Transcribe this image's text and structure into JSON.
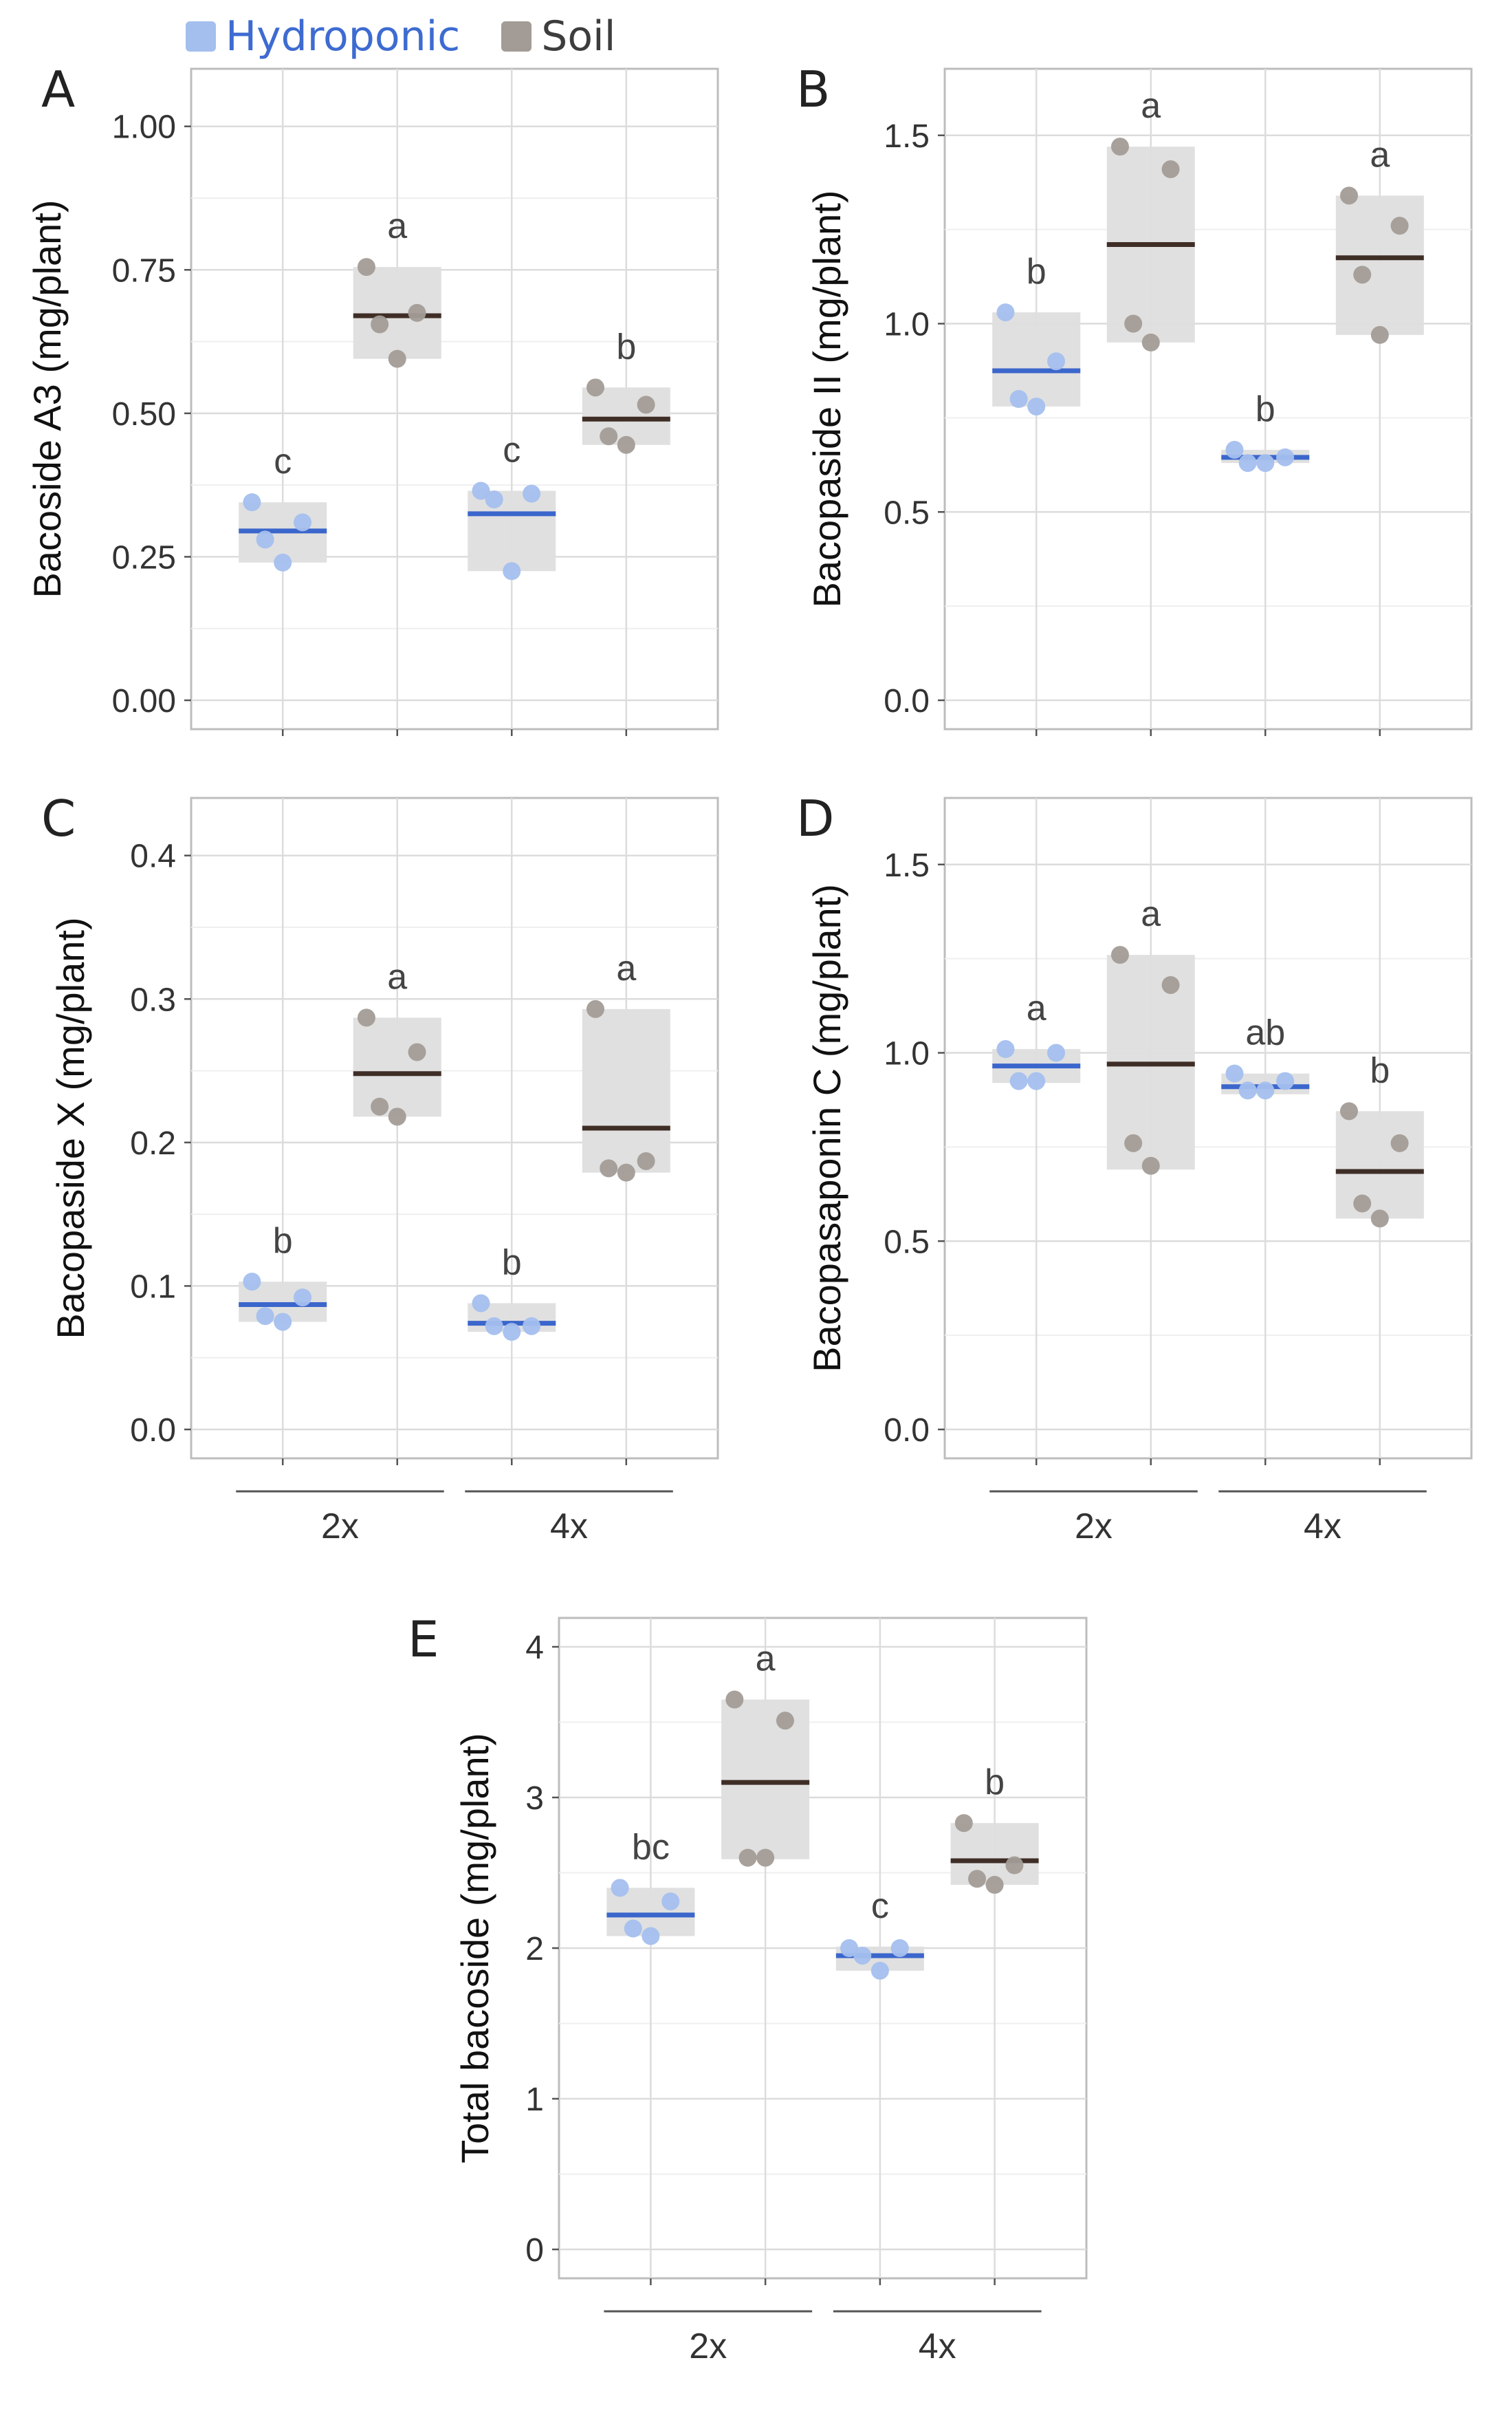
{
  "legend": {
    "items": [
      {
        "label": "Hydroponic",
        "color": "#a4bfee",
        "line_color": "#3b66cc"
      },
      {
        "label": "Soil",
        "color": "#a39c96",
        "line_color": "#3f2e26"
      }
    ]
  },
  "group_labels": [
    "2x",
    "4x"
  ],
  "chart_data": [
    {
      "type": "dot-strip",
      "panel": "A",
      "ylabel": "Bacoside A3 (mg/plant)",
      "ylim": [
        0,
        1.05
      ],
      "yticks": [
        0,
        0.25,
        0.5,
        0.75,
        1.0
      ],
      "ytick_labels": [
        "0.00",
        "0.25",
        "0.50",
        "0.75",
        "1.00"
      ],
      "groups": [
        "2x",
        "4x"
      ],
      "series": [
        {
          "group": "2x",
          "medium": "Hydroponic",
          "points": [
            0.345,
            0.28,
            0.24,
            0.31
          ],
          "mean": 0.295,
          "range": [
            0.24,
            0.345
          ],
          "letter": "c"
        },
        {
          "group": "2x",
          "medium": "Soil",
          "points": [
            0.755,
            0.655,
            0.595,
            0.675
          ],
          "mean": 0.67,
          "range": [
            0.595,
            0.755
          ],
          "letter": "a"
        },
        {
          "group": "4x",
          "medium": "Hydroponic",
          "points": [
            0.365,
            0.35,
            0.225,
            0.36
          ],
          "mean": 0.325,
          "range": [
            0.225,
            0.365
          ],
          "letter": "c"
        },
        {
          "group": "4x",
          "medium": "Soil",
          "points": [
            0.545,
            0.46,
            0.445,
            0.515
          ],
          "mean": 0.49,
          "range": [
            0.445,
            0.545
          ],
          "letter": "b"
        }
      ]
    },
    {
      "type": "dot-strip",
      "panel": "B",
      "ylabel": "Bacopaside II (mg/plant)",
      "ylim": [
        0,
        1.6
      ],
      "yticks": [
        0,
        0.5,
        1.0,
        1.5
      ],
      "ytick_labels": [
        "0.0",
        "0.5",
        "1.0",
        "1.5"
      ],
      "groups": [
        "2x",
        "4x"
      ],
      "series": [
        {
          "group": "2x",
          "medium": "Hydroponic",
          "points": [
            1.03,
            0.8,
            0.78,
            0.9
          ],
          "mean": 0.875,
          "range": [
            0.78,
            1.03
          ],
          "letter": "b"
        },
        {
          "group": "2x",
          "medium": "Soil",
          "points": [
            1.47,
            1.0,
            0.95,
            1.41
          ],
          "mean": 1.21,
          "range": [
            0.95,
            1.47
          ],
          "letter": "a"
        },
        {
          "group": "4x",
          "medium": "Hydroponic",
          "points": [
            0.665,
            0.63,
            0.63,
            0.645
          ],
          "mean": 0.645,
          "range": [
            0.63,
            0.665
          ],
          "letter": "b"
        },
        {
          "group": "4x",
          "medium": "Soil",
          "points": [
            1.34,
            1.13,
            0.97,
            1.26
          ],
          "mean": 1.175,
          "range": [
            0.97,
            1.34
          ],
          "letter": "a"
        }
      ]
    },
    {
      "type": "dot-strip",
      "panel": "C",
      "ylabel": "Bacopaside X (mg/plant)",
      "ylim": [
        0,
        0.42
      ],
      "yticks": [
        0,
        0.1,
        0.2,
        0.3,
        0.4
      ],
      "ytick_labels": [
        "0.0",
        "0.1",
        "0.2",
        "0.3",
        "0.4"
      ],
      "groups": [
        "2x",
        "4x"
      ],
      "series": [
        {
          "group": "2x",
          "medium": "Hydroponic",
          "points": [
            0.103,
            0.079,
            0.075,
            0.092
          ],
          "mean": 0.087,
          "range": [
            0.075,
            0.103
          ],
          "letter": "b"
        },
        {
          "group": "2x",
          "medium": "Soil",
          "points": [
            0.287,
            0.225,
            0.218,
            0.263
          ],
          "mean": 0.248,
          "range": [
            0.218,
            0.287
          ],
          "letter": "a"
        },
        {
          "group": "4x",
          "medium": "Hydroponic",
          "points": [
            0.088,
            0.072,
            0.068,
            0.072
          ],
          "mean": 0.074,
          "range": [
            0.068,
            0.088
          ],
          "letter": "b"
        },
        {
          "group": "4x",
          "medium": "Soil",
          "points": [
            0.293,
            0.182,
            0.179,
            0.187
          ],
          "mean": 0.21,
          "range": [
            0.179,
            0.293
          ],
          "letter": "a"
        }
      ]
    },
    {
      "type": "dot-strip",
      "panel": "D",
      "ylabel": "Bacopasaponin C (mg/plant)",
      "ylim": [
        0,
        1.6
      ],
      "yticks": [
        0,
        0.5,
        1.0,
        1.5
      ],
      "ytick_labels": [
        "0.0",
        "0.5",
        "1.0",
        "1.5"
      ],
      "groups": [
        "2x",
        "4x"
      ],
      "series": [
        {
          "group": "2x",
          "medium": "Hydroponic",
          "points": [
            1.01,
            0.925,
            0.925,
            1.0
          ],
          "mean": 0.965,
          "range": [
            0.92,
            1.01
          ],
          "letter": "a"
        },
        {
          "group": "2x",
          "medium": "Soil",
          "points": [
            1.26,
            0.76,
            0.7,
            1.18
          ],
          "mean": 0.97,
          "range": [
            0.69,
            1.26
          ],
          "letter": "a"
        },
        {
          "group": "4x",
          "medium": "Hydroponic",
          "points": [
            0.945,
            0.9,
            0.9,
            0.925
          ],
          "mean": 0.91,
          "range": [
            0.89,
            0.945
          ],
          "letter": "ab"
        },
        {
          "group": "4x",
          "medium": "Soil",
          "points": [
            0.845,
            0.6,
            0.56,
            0.76
          ],
          "mean": 0.685,
          "range": [
            0.56,
            0.845
          ],
          "letter": "b"
        }
      ]
    },
    {
      "type": "dot-strip",
      "panel": "E",
      "ylabel": "Total bacoside (mg/plant)",
      "ylim": [
        0,
        4.0
      ],
      "yticks": [
        0,
        1,
        2,
        3,
        4
      ],
      "ytick_labels": [
        "0",
        "1",
        "2",
        "3",
        "4"
      ],
      "groups": [
        "2x",
        "4x"
      ],
      "series": [
        {
          "group": "2x",
          "medium": "Hydroponic",
          "points": [
            2.4,
            2.13,
            2.08,
            2.31
          ],
          "mean": 2.22,
          "range": [
            2.08,
            2.4
          ],
          "letter": "bc"
        },
        {
          "group": "2x",
          "medium": "Soil",
          "points": [
            3.65,
            2.6,
            2.6,
            3.51
          ],
          "mean": 3.1,
          "range": [
            2.59,
            3.65
          ],
          "letter": "a"
        },
        {
          "group": "4x",
          "medium": "Hydroponic",
          "points": [
            2.0,
            1.95,
            1.85,
            2.0
          ],
          "mean": 1.95,
          "range": [
            1.85,
            2.01
          ],
          "letter": "c"
        },
        {
          "group": "4x",
          "medium": "Soil",
          "points": [
            2.83,
            2.46,
            2.42,
            2.55
          ],
          "mean": 2.58,
          "range": [
            2.42,
            2.83
          ],
          "letter": "b"
        }
      ]
    }
  ]
}
